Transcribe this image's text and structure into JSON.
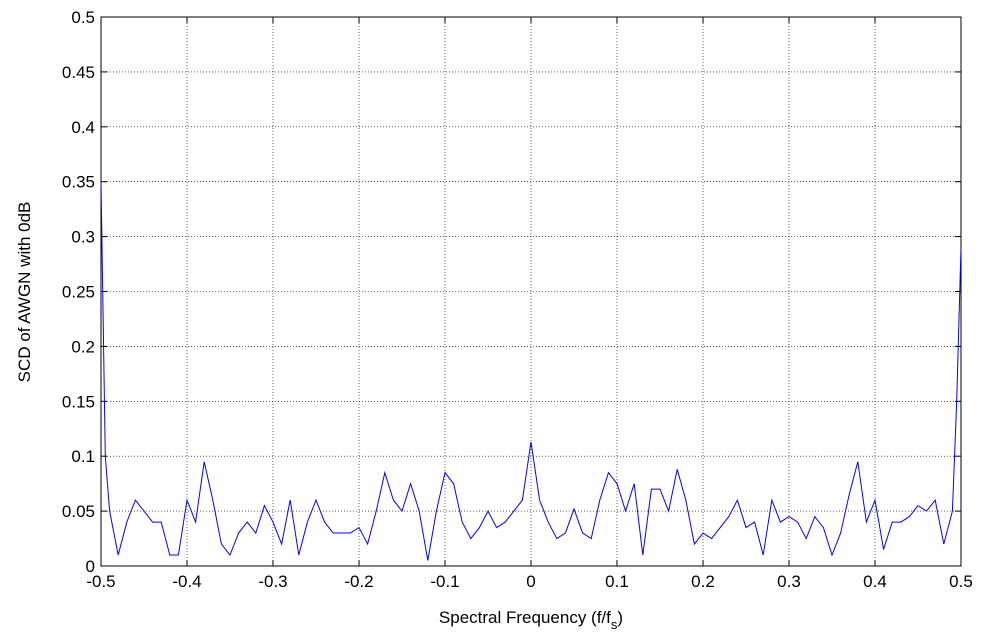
{
  "chart_data": {
    "type": "line",
    "ylabel": "SCD of AWGN with 0dB",
    "xlabel": {
      "text": "Spectral Frequency (f/f",
      "subscript": "s",
      "suffix": ")"
    },
    "x": [
      -0.5,
      -0.495,
      -0.49,
      -0.48,
      -0.47,
      -0.46,
      -0.45,
      -0.44,
      -0.43,
      -0.42,
      -0.41,
      -0.4,
      -0.39,
      -0.38,
      -0.37,
      -0.36,
      -0.35,
      -0.34,
      -0.33,
      -0.32,
      -0.31,
      -0.3,
      -0.29,
      -0.28,
      -0.27,
      -0.26,
      -0.25,
      -0.24,
      -0.23,
      -0.22,
      -0.21,
      -0.2,
      -0.19,
      -0.18,
      -0.17,
      -0.16,
      -0.15,
      -0.14,
      -0.13,
      -0.12,
      -0.11,
      -0.1,
      -0.09,
      -0.08,
      -0.07,
      -0.06,
      -0.05,
      -0.04,
      -0.03,
      -0.02,
      -0.01,
      0,
      0.01,
      0.02,
      0.03,
      0.04,
      0.05,
      0.06,
      0.07,
      0.08,
      0.09,
      0.1,
      0.11,
      0.12,
      0.13,
      0.14,
      0.15,
      0.16,
      0.17,
      0.18,
      0.19,
      0.2,
      0.21,
      0.22,
      0.23,
      0.24,
      0.25,
      0.26,
      0.27,
      0.28,
      0.29,
      0.3,
      0.31,
      0.32,
      0.33,
      0.34,
      0.35,
      0.36,
      0.37,
      0.38,
      0.39,
      0.4,
      0.41,
      0.42,
      0.43,
      0.44,
      0.45,
      0.46,
      0.47,
      0.48,
      0.49,
      0.495,
      0.5
    ],
    "series": [
      {
        "color": "#0000ff",
        "values": [
          0.35,
          0.1,
          0.05,
          0.01,
          0.04,
          0.06,
          0.05,
          0.04,
          0.04,
          0.01,
          0.01,
          0.06,
          0.04,
          0.095,
          0.06,
          0.02,
          0.01,
          0.03,
          0.04,
          0.03,
          0.055,
          0.04,
          0.02,
          0.06,
          0.01,
          0.04,
          0.06,
          0.04,
          0.03,
          0.03,
          0.03,
          0.035,
          0.02,
          0.05,
          0.085,
          0.06,
          0.05,
          0.075,
          0.05,
          0.005,
          0.05,
          0.085,
          0.075,
          0.04,
          0.025,
          0.035,
          0.05,
          0.035,
          0.04,
          0.05,
          0.06,
          0.113,
          0.06,
          0.04,
          0.025,
          0.03,
          0.052,
          0.03,
          0.025,
          0.06,
          0.085,
          0.075,
          0.05,
          0.075,
          0.01,
          0.07,
          0.07,
          0.05,
          0.088,
          0.06,
          0.02,
          0.03,
          0.025,
          0.035,
          0.045,
          0.06,
          0.035,
          0.04,
          0.01,
          0.06,
          0.04,
          0.045,
          0.04,
          0.025,
          0.045,
          0.035,
          0.01,
          0.03,
          0.065,
          0.095,
          0.04,
          0.06,
          0.015,
          0.04,
          0.04,
          0.045,
          0.055,
          0.05,
          0.06,
          0.02,
          0.05,
          0.15,
          0.29
        ]
      }
    ],
    "xlim": [
      -0.5,
      0.5
    ],
    "xticks": [
      -0.5,
      -0.4,
      -0.3,
      -0.2,
      -0.1,
      0,
      0.1,
      0.2,
      0.3,
      0.4,
      0.5
    ],
    "ylim": [
      0,
      0.5
    ],
    "yticks": [
      0,
      0.05,
      0.1,
      0.15,
      0.2,
      0.25,
      0.3,
      0.35,
      0.4,
      0.45,
      0.5
    ],
    "grid": true
  }
}
